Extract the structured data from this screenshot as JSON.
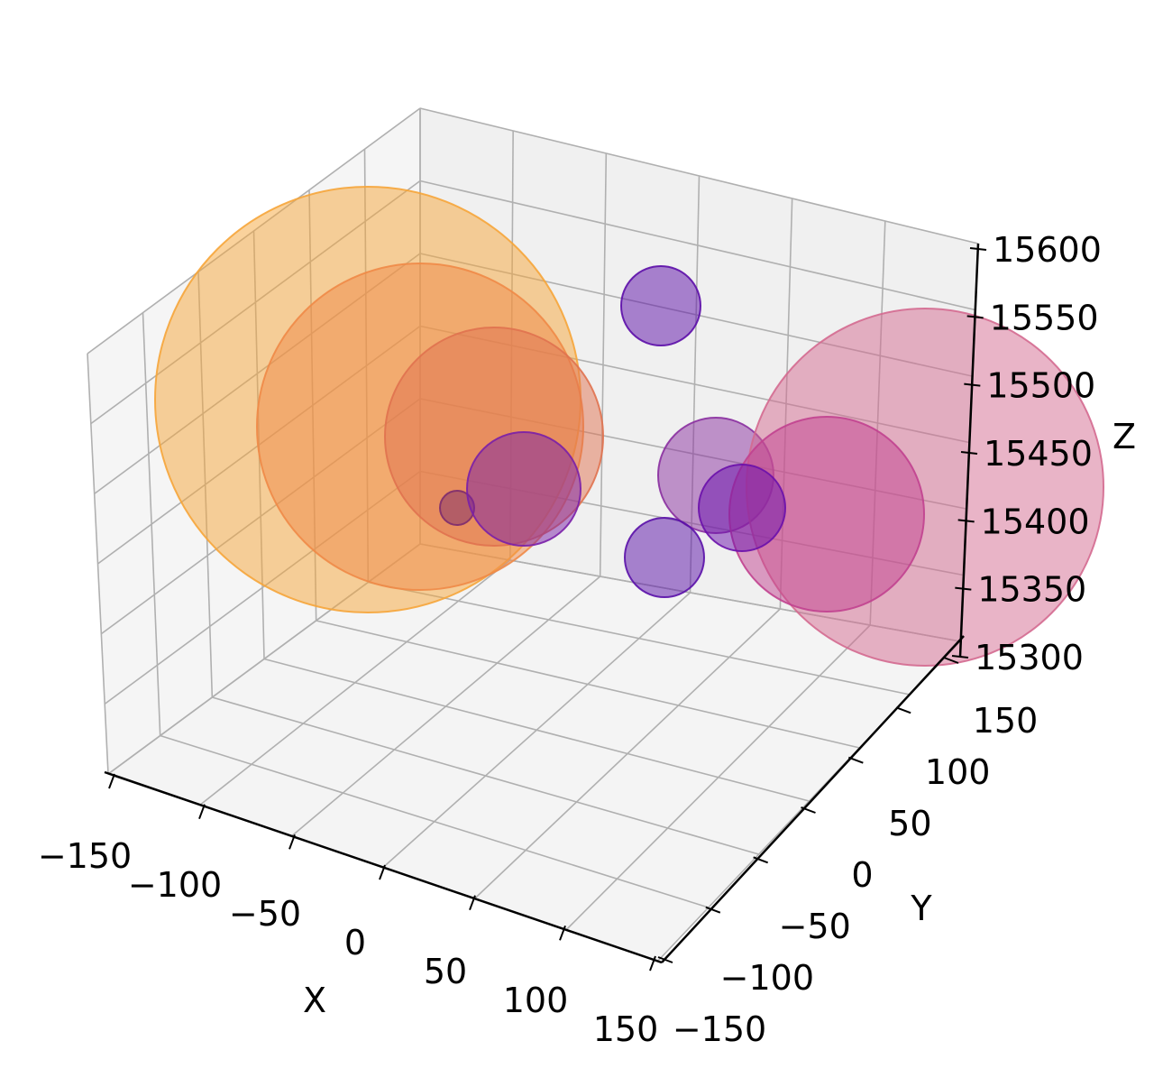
{
  "chart_data": {
    "type": "scatter3d",
    "title": "",
    "xlabel": "X",
    "ylabel": "Y",
    "zlabel": "Z",
    "xlim": [
      -150,
      150
    ],
    "ylim": [
      -150,
      150
    ],
    "zlim": [
      15300,
      15600
    ],
    "xticks": [
      "−150",
      "−100",
      "−50",
      "0",
      "50",
      "100",
      "150"
    ],
    "yticks": [
      "−150",
      "−100",
      "−50",
      "0",
      "50",
      "100",
      "150"
    ],
    "zticks": [
      "15300",
      "15350",
      "15400",
      "15450",
      "15500",
      "15550",
      "15600"
    ],
    "grid": true,
    "colormap": "plasma",
    "alpha": 0.5,
    "points": [
      {
        "id": "p1",
        "color": "#f6a53a",
        "size": "largest"
      },
      {
        "id": "p2",
        "color": "#ef8a47",
        "size": "large"
      },
      {
        "id": "p3",
        "color": "#e0724f",
        "size": "medium-large"
      },
      {
        "id": "p4",
        "color": "#c1418f",
        "size": "medium-large"
      },
      {
        "id": "p5",
        "color": "#d46a90",
        "size": "medium-large"
      },
      {
        "id": "p6",
        "color": "#8a2fa0",
        "size": "medium"
      },
      {
        "id": "p7",
        "color": "#7a1fa8",
        "size": "medium"
      },
      {
        "id": "p8",
        "color": "#6a10ab",
        "size": "small"
      },
      {
        "id": "p9",
        "color": "#5c0da8",
        "size": "small"
      },
      {
        "id": "p10",
        "color": "#5a10a8",
        "size": "small"
      },
      {
        "id": "p11",
        "color": "#4b0a9c",
        "size": "small"
      },
      {
        "id": "p12",
        "color": "#7d2b6e",
        "size": "tiny"
      }
    ]
  }
}
